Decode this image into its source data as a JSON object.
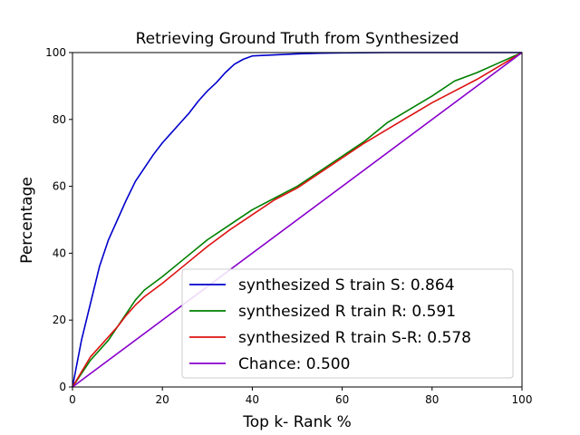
{
  "chart_data": {
    "type": "line",
    "title": "Retrieving Ground Truth from Synthesized",
    "xlabel": "Top k- Rank %",
    "ylabel": "Percentage",
    "xlim": [
      0,
      100
    ],
    "ylim": [
      0,
      100
    ],
    "xticks": [
      0,
      20,
      40,
      60,
      80,
      100
    ],
    "yticks": [
      0,
      20,
      40,
      60,
      80,
      100
    ],
    "grid": false,
    "legend_position": "lower-right",
    "series": [
      {
        "name": "synthesized S train S: 0.864",
        "color": "#0000cc",
        "x": [
          0,
          2,
          4,
          6,
          8,
          10,
          12,
          14,
          16,
          18,
          20,
          22,
          24,
          26,
          28,
          30,
          32,
          34,
          36,
          38,
          40,
          45,
          50,
          55,
          60,
          70,
          80,
          90,
          100
        ],
        "y": [
          0,
          14,
          25,
          36,
          44,
          50,
          56,
          61.5,
          65.5,
          69.5,
          73,
          76,
          79,
          82,
          85.5,
          88.5,
          91,
          94,
          96.5,
          98,
          99,
          99.3,
          99.6,
          99.8,
          99.9,
          100,
          100,
          100,
          100
        ]
      },
      {
        "name": "synthesized R train R: 0.591",
        "color": "#008000",
        "x": [
          0,
          2,
          4,
          6,
          8,
          10,
          12,
          14,
          16,
          18,
          20,
          25,
          30,
          35,
          40,
          45,
          50,
          55,
          60,
          65,
          70,
          75,
          80,
          85,
          90,
          95,
          100
        ],
        "y": [
          0,
          4,
          8,
          11,
          14,
          18,
          22,
          26,
          29,
          31,
          33,
          38.5,
          44,
          48.5,
          53,
          56.5,
          60,
          64.5,
          69,
          73.5,
          79,
          83,
          87,
          91.5,
          94,
          97,
          100
        ]
      },
      {
        "name": "synthesized R train S-R: 0.578",
        "color": "#dd1111",
        "x": [
          0,
          2,
          4,
          6,
          8,
          10,
          12,
          14,
          16,
          18,
          20,
          25,
          30,
          35,
          40,
          45,
          50,
          55,
          60,
          65,
          70,
          75,
          80,
          85,
          90,
          95,
          100
        ],
        "y": [
          0,
          4.5,
          9,
          12,
          15,
          18,
          21.5,
          24.5,
          27,
          29,
          31,
          36.5,
          42,
          47,
          51.5,
          56,
          59.5,
          64,
          68.5,
          73,
          77,
          81,
          85,
          88.5,
          92,
          96,
          100
        ]
      },
      {
        "name": "Chance: 0.500",
        "color": "#8800cc",
        "x": [
          0,
          100
        ],
        "y": [
          0,
          100
        ]
      }
    ]
  }
}
